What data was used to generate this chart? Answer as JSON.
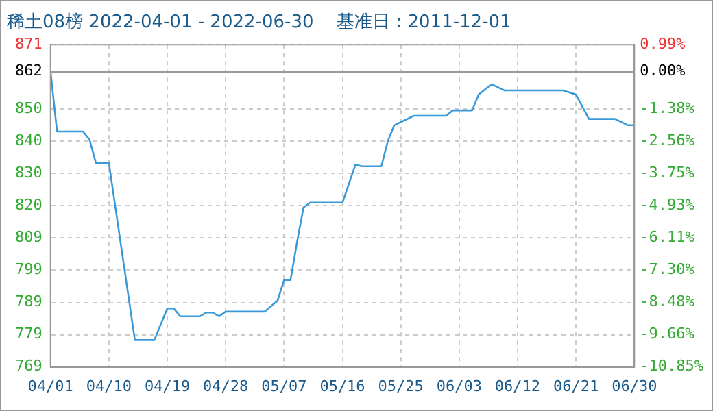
{
  "chart_data": {
    "type": "line",
    "title": "稀土08榜 2022-04-01 - 2022-06-30    基准日：2011-12-01",
    "x": [
      "2022-04-01",
      "2022-04-02",
      "2022-04-06",
      "2022-04-07",
      "2022-04-08",
      "2022-04-10",
      "2022-04-14",
      "2022-04-17",
      "2022-04-19",
      "2022-04-20",
      "2022-04-21",
      "2022-04-24",
      "2022-04-25",
      "2022-04-26",
      "2022-04-27",
      "2022-04-28",
      "2022-05-04",
      "2022-05-06",
      "2022-05-07",
      "2022-05-08",
      "2022-05-09",
      "2022-05-10",
      "2022-05-11",
      "2022-05-16",
      "2022-05-17",
      "2022-05-18",
      "2022-05-19",
      "2022-05-22",
      "2022-05-23",
      "2022-05-24",
      "2022-05-27",
      "2022-06-01",
      "2022-06-02",
      "2022-06-05",
      "2022-06-06",
      "2022-06-08",
      "2022-06-10",
      "2022-06-19",
      "2022-06-21",
      "2022-06-23",
      "2022-06-27",
      "2022-06-29",
      "2022-06-30"
    ],
    "series": [
      {
        "color": "#3a9ad9",
        "values": [
          862,
          843,
          843,
          840.5,
          833,
          833,
          777,
          777,
          787,
          787,
          784.5,
          784.5,
          785.7,
          785.7,
          784.5,
          786,
          786,
          789.5,
          796,
          796,
          808,
          819,
          820.5,
          820.5,
          826.5,
          832.5,
          832,
          832,
          840,
          845,
          848,
          848,
          849.7,
          849.7,
          854.7,
          858,
          856,
          856,
          854.7,
          847,
          847,
          845,
          845
        ]
      }
    ],
    "xlim": [
      "2022-04-01",
      "2022-06-30"
    ],
    "xticks": [
      {
        "value": "2022-04-01",
        "label": "04/01"
      },
      {
        "value": "2022-04-10",
        "label": "04/10"
      },
      {
        "value": "2022-04-19",
        "label": "04/19"
      },
      {
        "value": "2022-04-28",
        "label": "04/28"
      },
      {
        "value": "2022-05-07",
        "label": "05/07"
      },
      {
        "value": "2022-05-16",
        "label": "05/16"
      },
      {
        "value": "2022-05-25",
        "label": "05/25"
      },
      {
        "value": "2022-06-03",
        "label": "06/03"
      },
      {
        "value": "2022-06-12",
        "label": "06/12"
      },
      {
        "value": "2022-06-21",
        "label": "06/21"
      },
      {
        "value": "2022-06-30",
        "label": "06/30"
      }
    ],
    "ylim": [
      768.5,
      870.5
    ],
    "yticks": [
      {
        "value": 870.5,
        "label": "871"
      },
      862,
      {
        "value": 850.1,
        "label": "850"
      },
      {
        "value": 839.9,
        "label": "840"
      },
      {
        "value": 829.7,
        "label": "830"
      },
      {
        "value": 819.5,
        "label": "820"
      },
      {
        "value": 809.3,
        "label": "809"
      },
      {
        "value": 799.1,
        "label": "799"
      },
      {
        "value": 788.9,
        "label": "789"
      },
      {
        "value": 778.7,
        "label": "779"
      },
      {
        "value": 768.5,
        "label": "769"
      }
    ],
    "y2lim": [
      -10.85,
      0.99
    ],
    "y2ticks": [
      {
        "value": 0.99,
        "label": "0.99%"
      },
      {
        "value": 0,
        "label": "0.00%"
      },
      {
        "value": -1.38,
        "label": "-1.38%"
      },
      {
        "value": -2.56,
        "label": "-2.56%"
      },
      {
        "value": -3.75,
        "label": "-3.75%"
      },
      {
        "value": -4.93,
        "label": "-4.93%"
      },
      {
        "value": -6.11,
        "label": "-6.11%"
      },
      {
        "value": -7.3,
        "label": "-7.30%"
      },
      {
        "value": -8.48,
        "label": "-8.48%"
      },
      {
        "value": -9.66,
        "label": "-9.66%"
      },
      {
        "value": -10.85,
        "label": "-10.85%"
      }
    ],
    "ref_lines": [
      {
        "axis": "y",
        "value": 862,
        "color": "#999999"
      }
    ],
    "grid": true,
    "legend": false,
    "marker": "none",
    "line_style": "solid"
  }
}
